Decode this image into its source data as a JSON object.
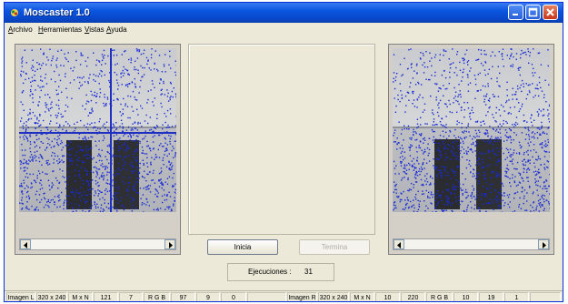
{
  "window": {
    "title": "Moscaster 1.0"
  },
  "menu": [
    "Archivo",
    "Herramientas",
    "Vistas",
    "Ayuda"
  ],
  "buttons": {
    "start": "Inicia",
    "stop": "Termina"
  },
  "executions": {
    "label": "Ejecuciones :",
    "value": "31"
  },
  "status_left": [
    "Imagen L",
    "320 x 240",
    "M x N",
    "121",
    "7",
    "R G B",
    "97",
    "9",
    "0"
  ],
  "status_right": [
    "Imagen R",
    "320 x 240",
    "M x N",
    "10",
    "220",
    "R G B",
    "10",
    "19",
    "1"
  ],
  "colors": {
    "title_bar": "#0b55e0",
    "window_bg": "#ece9d8",
    "dots": "#1a2bd6",
    "crosshair": "#1f2fbf"
  },
  "icons": [
    "app-icon",
    "minimize-icon",
    "maximize-icon",
    "close-icon",
    "scroll-left-icon",
    "scroll-right-icon"
  ]
}
